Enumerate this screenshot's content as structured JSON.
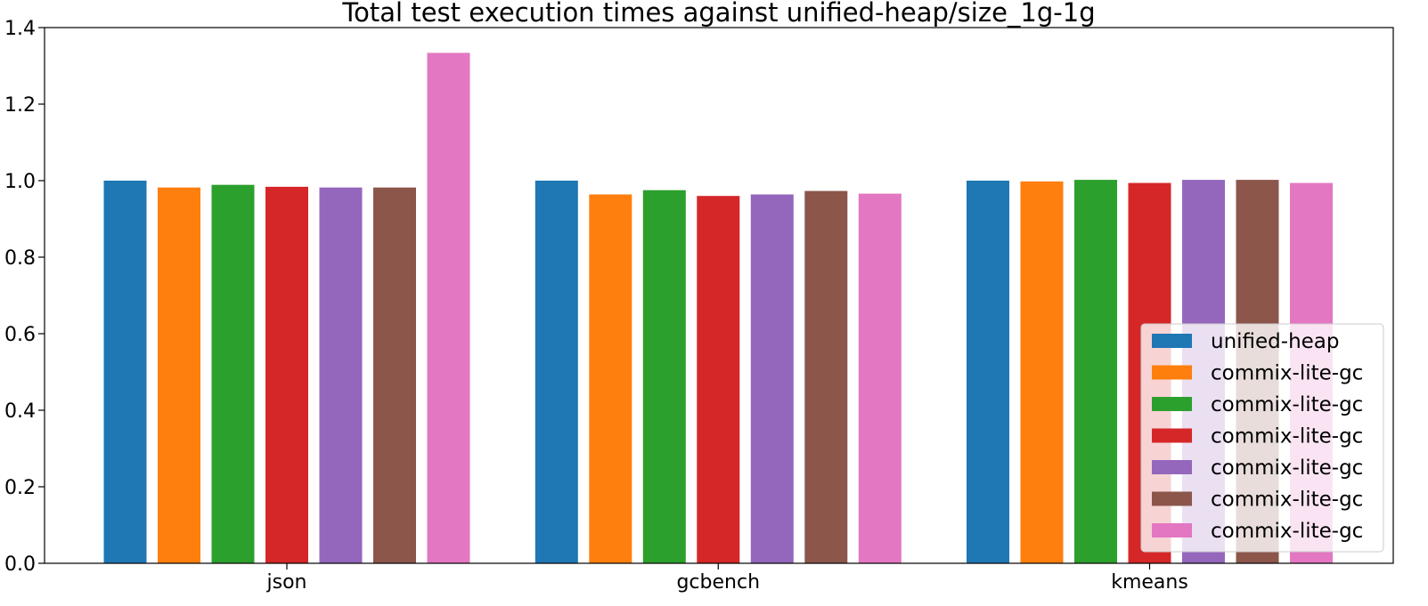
{
  "chart_data": {
    "type": "bar",
    "title": "Total test execution times against unified-heap/size_1g-1g",
    "xlabel": "",
    "ylabel": "",
    "categories": [
      "json",
      "gcbench",
      "kmeans"
    ],
    "ylim": [
      0,
      1.4
    ],
    "yticks": [
      "0.0",
      "0.2",
      "0.4",
      "0.6",
      "0.8",
      "1.0",
      "1.2",
      "1.4"
    ],
    "legend_position": "lower right",
    "grid": false,
    "series": [
      {
        "name": "unified-heap",
        "color": "#1f77b4",
        "values": [
          1.0,
          1.0,
          1.0
        ]
      },
      {
        "name": "commix-lite-gc",
        "color": "#ff7f0e",
        "values": [
          0.982,
          0.964,
          0.998
        ]
      },
      {
        "name": "commix-lite-gc",
        "color": "#2ca02c",
        "values": [
          0.989,
          0.975,
          1.002
        ]
      },
      {
        "name": "commix-lite-gc",
        "color": "#d62728",
        "values": [
          0.984,
          0.96,
          0.994
        ]
      },
      {
        "name": "commix-lite-gc",
        "color": "#9467bd",
        "values": [
          0.982,
          0.964,
          1.002
        ]
      },
      {
        "name": "commix-lite-gc",
        "color": "#8c564b",
        "values": [
          0.982,
          0.973,
          1.002
        ]
      },
      {
        "name": "commix-lite-gc",
        "color": "#e377c2",
        "values": [
          1.334,
          0.966,
          0.994
        ]
      }
    ]
  }
}
